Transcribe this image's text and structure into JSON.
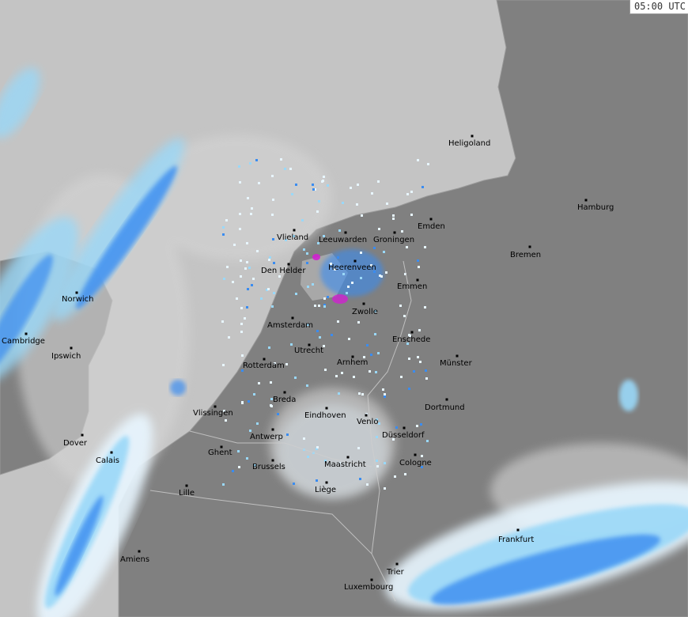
{
  "timestamp": "05:00 UTC",
  "colors": {
    "sea": "#c4c4c4",
    "land": "#808080",
    "cloud": "#a8a8a8",
    "rain_light": "#e8f6ff",
    "rain_medium": "#9ad8f8",
    "rain_heavy": "#3a8cf0",
    "rain_intense": "#d020d0"
  },
  "cities": [
    {
      "name": "Heligoland"
    },
    {
      "name": "Hamburg"
    },
    {
      "name": "Emden"
    },
    {
      "name": "Groningen"
    },
    {
      "name": "Leeuwarden"
    },
    {
      "name": "Vlieland"
    },
    {
      "name": "Bremen"
    },
    {
      "name": "Den Helder"
    },
    {
      "name": "Heerenveen"
    },
    {
      "name": "Norwich"
    },
    {
      "name": "Emmen"
    },
    {
      "name": "Zwolle"
    },
    {
      "name": "Amsterdam"
    },
    {
      "name": "Cambridge"
    },
    {
      "name": "Ipswich"
    },
    {
      "name": "Utrecht"
    },
    {
      "name": "Enschede"
    },
    {
      "name": "Rotterdam"
    },
    {
      "name": "Arnhem"
    },
    {
      "name": "Münster"
    },
    {
      "name": "Breda"
    },
    {
      "name": "Vlissingen"
    },
    {
      "name": "Eindhoven"
    },
    {
      "name": "Dortmund"
    },
    {
      "name": "Venlo"
    },
    {
      "name": "Düsseldorf"
    },
    {
      "name": "Antwerp"
    },
    {
      "name": "Dover"
    },
    {
      "name": "Ghent"
    },
    {
      "name": "Calais"
    },
    {
      "name": "Cologne"
    },
    {
      "name": "Brussels"
    },
    {
      "name": "Maastricht"
    },
    {
      "name": "Lille"
    },
    {
      "name": "Liège"
    },
    {
      "name": "Frankfurt"
    },
    {
      "name": "Amiens"
    },
    {
      "name": "Trier"
    },
    {
      "name": "Luxembourg"
    }
  ]
}
